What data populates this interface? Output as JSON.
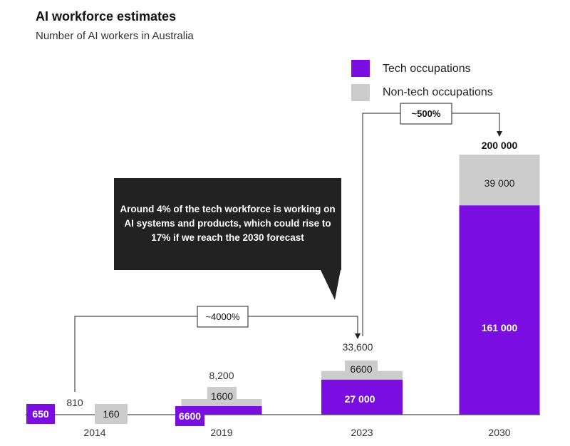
{
  "colors": {
    "tech": "#7a0ee0",
    "nontech": "#cccccc",
    "callout": "#222222",
    "line": "#222222"
  },
  "chart_data": {
    "type": "bar",
    "stacked": true,
    "title": "AI workforce estimates",
    "subtitle": "Number of AI workers in Australia",
    "categories": [
      "2014",
      "2019",
      "2023",
      "2030"
    ],
    "series": [
      {
        "name": "Tech occupations",
        "values": [
          650,
          6600,
          27000,
          161000
        ],
        "labels": [
          "650",
          "6600",
          "27 000",
          "161 000"
        ]
      },
      {
        "name": "Non-tech occupations",
        "values": [
          160,
          1600,
          6600,
          39000
        ],
        "labels": [
          "160",
          "1600",
          "6600",
          "39 000"
        ]
      }
    ],
    "totals": [
      "810",
      "8,200",
      "33,600",
      "200 000"
    ],
    "ylim": [
      0,
      200000
    ],
    "legend_position": "top-right",
    "grid": false,
    "annotations": {
      "callout": [
        "Around 4% of the tech workforce is working on",
        "AI systems and products, which could rise to",
        "17% if we reach the 2030 forecast"
      ],
      "growth_2014_2023": "~4000%",
      "growth_2023_2030": "~500%"
    }
  }
}
